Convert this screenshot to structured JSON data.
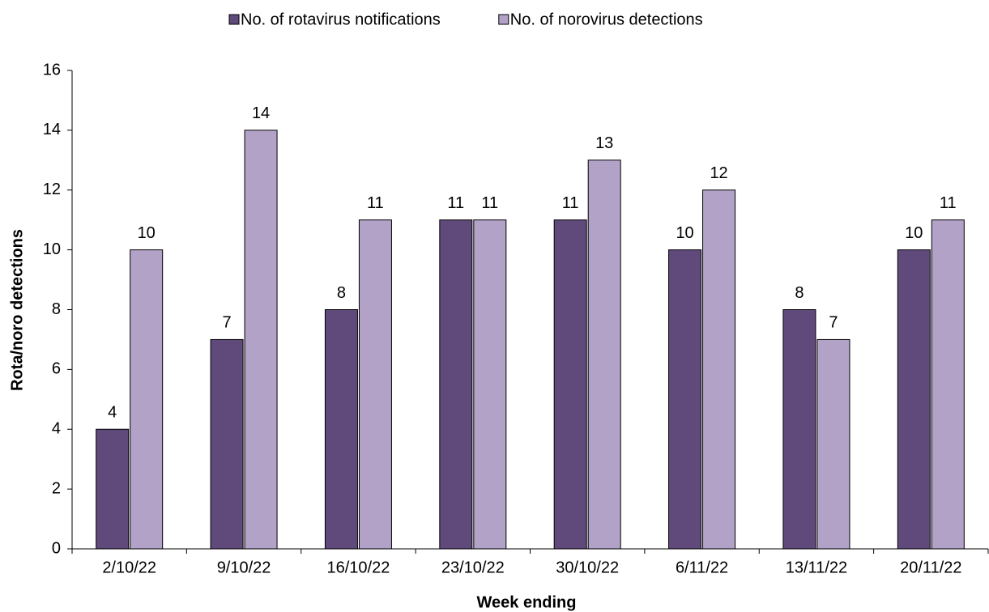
{
  "chart_data": {
    "type": "bar",
    "x_label": "Week ending",
    "y_label": "Rota/noro detections",
    "categories": [
      "2/10/22",
      "9/10/22",
      "16/10/22",
      "23/10/22",
      "30/10/22",
      "6/11/22",
      "13/11/22",
      "20/11/22"
    ],
    "series": [
      {
        "name": "No. of rotavirus notifications",
        "color": "#604a7b",
        "values": [
          4,
          7,
          8,
          11,
          11,
          10,
          8,
          10
        ]
      },
      {
        "name": "No. of norovirus detections",
        "color": "#b2a2c7",
        "values": [
          10,
          14,
          11,
          11,
          13,
          12,
          7,
          11
        ]
      }
    ],
    "ylim": [
      0,
      16
    ],
    "yticks": [
      0,
      2,
      4,
      6,
      8,
      10,
      12,
      14,
      16
    ],
    "legend": "top"
  }
}
